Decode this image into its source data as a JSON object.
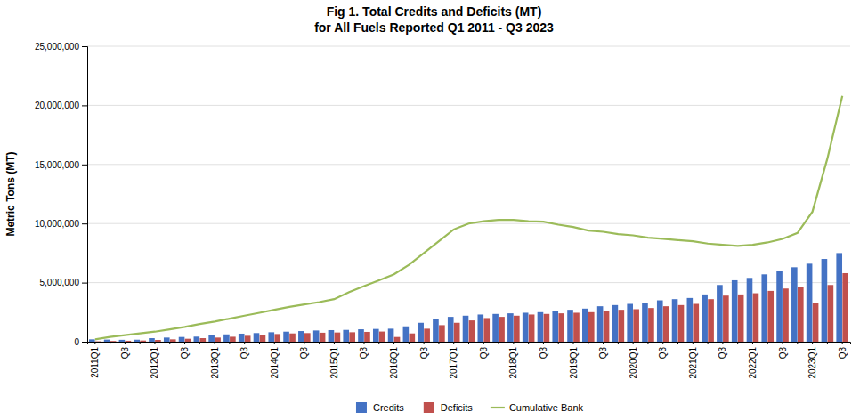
{
  "chart_data": {
    "type": "bar",
    "title": "Fig 1. Total Credits and Deficits  (MT)",
    "subtitle": "for All Fuels Reported Q1 2011 - Q3 2023",
    "ylabel": "Metric Tons (MT)",
    "categories": [
      "2011Q1",
      null,
      "Q3",
      null,
      "2012Q1",
      null,
      "Q3",
      null,
      "2013Q1",
      null,
      "Q3",
      null,
      "2014Q1",
      null,
      "Q3",
      null,
      "2015Q1",
      null,
      "Q3",
      null,
      "2016Q1",
      null,
      "Q3",
      null,
      "2017Q1",
      null,
      "Q3",
      null,
      "2018Q1",
      null,
      "Q3",
      null,
      "2019Q1",
      null,
      "Q3",
      null,
      "2020Q1",
      null,
      "Q3",
      null,
      "2021Q1",
      null,
      "Q3",
      null,
      "2022Q1",
      null,
      "Q3",
      null,
      "2023Q1",
      null,
      "Q3"
    ],
    "series": [
      {
        "name": "Credits",
        "type": "bar",
        "color": "#4472C4",
        "values": [
          200000,
          180000,
          160000,
          170000,
          300000,
          350000,
          400000,
          430000,
          550000,
          620000,
          680000,
          730000,
          800000,
          850000,
          900000,
          950000,
          980000,
          1000000,
          1050000,
          1080000,
          1100000,
          1300000,
          1600000,
          1900000,
          2100000,
          2200000,
          2300000,
          2350000,
          2400000,
          2450000,
          2500000,
          2600000,
          2700000,
          2800000,
          3000000,
          3100000,
          3200000,
          3300000,
          3500000,
          3600000,
          3700000,
          4000000,
          4800000,
          5200000,
          5400000,
          5700000,
          6000000,
          6300000,
          6600000,
          7000000,
          7500000
        ]
      },
      {
        "name": "Deficits",
        "type": "bar",
        "color": "#C0504D",
        "values": [
          30000,
          60000,
          80000,
          100000,
          150000,
          200000,
          250000,
          300000,
          350000,
          420000,
          500000,
          580000,
          650000,
          700000,
          730000,
          760000,
          780000,
          800000,
          830000,
          860000,
          400000,
          700000,
          1100000,
          1400000,
          1600000,
          1800000,
          2000000,
          2100000,
          2200000,
          2300000,
          2350000,
          2400000,
          2450000,
          2500000,
          2600000,
          2700000,
          2750000,
          2850000,
          3000000,
          3100000,
          3200000,
          3600000,
          3900000,
          4000000,
          4100000,
          4300000,
          4500000,
          4600000,
          3300000,
          4800000,
          5800000
        ]
      },
      {
        "name": "Cumulative Bank",
        "type": "line",
        "color": "#9BBB59",
        "values": [
          200000,
          400000,
          550000,
          700000,
          850000,
          1050000,
          1250000,
          1500000,
          1700000,
          1950000,
          2200000,
          2450000,
          2700000,
          2950000,
          3150000,
          3350000,
          3600000,
          4200000,
          4700000,
          5200000,
          5700000,
          6500000,
          7500000,
          8500000,
          9500000,
          10000000,
          10200000,
          10300000,
          10300000,
          10200000,
          10150000,
          9900000,
          9700000,
          9400000,
          9300000,
          9100000,
          9000000,
          8800000,
          8700000,
          8600000,
          8500000,
          8300000,
          8200000,
          8100000,
          8200000,
          8400000,
          8700000,
          9200000,
          11000000,
          15500000,
          20800000
        ]
      }
    ],
    "ylim": [
      0,
      25000000
    ],
    "yticks": [
      0,
      {
        "value": 5000000,
        "label": "5,000,000"
      },
      {
        "value": 10000000,
        "label": "10,000,000"
      },
      {
        "value": 15000000,
        "label": "15,000,000"
      },
      {
        "value": 20000000,
        "label": "20,000,000"
      },
      {
        "value": 25000000,
        "label": "25,000,000"
      }
    ],
    "grid": true,
    "legend": "bottom"
  }
}
